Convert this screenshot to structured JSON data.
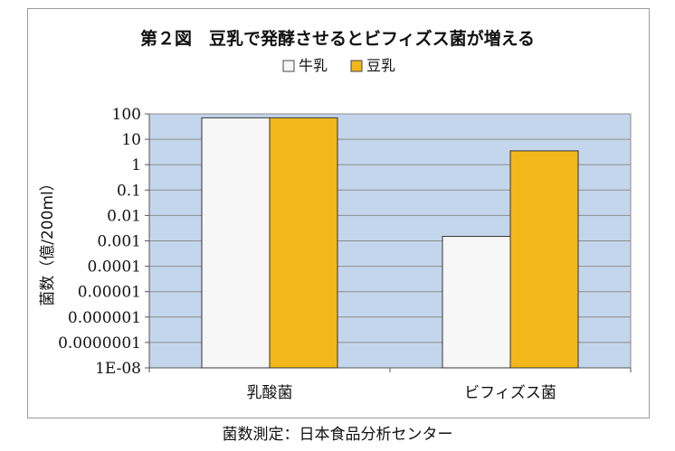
{
  "chart_data": {
    "type": "bar",
    "title": "第２図　豆乳で発酵させるとビフィズス菌が増える",
    "ylabel": "菌数（億/200ml）",
    "xlabel": "",
    "yscale": "log",
    "ylim": [
      1e-08,
      100
    ],
    "y_ticks": [
      "100",
      "10",
      "1",
      "0.1",
      "0.01",
      "0.001",
      "0.0001",
      "0.00001",
      "0.000001",
      "0.0000001",
      "1E-08"
    ],
    "categories": [
      "乳酸菌",
      "ビフィズス菌"
    ],
    "series": [
      {
        "name": "牛乳",
        "values": [
          70,
          0.0015
        ],
        "color": "#f7f7f7"
      },
      {
        "name": "豆乳",
        "values": [
          70,
          3.5
        ],
        "color": "#f2b81b"
      }
    ],
    "legend": "top-center",
    "grid": true,
    "plot_background": "#c4d6ec"
  },
  "footer": {
    "source": "菌数測定：日本食品分析センター"
  }
}
